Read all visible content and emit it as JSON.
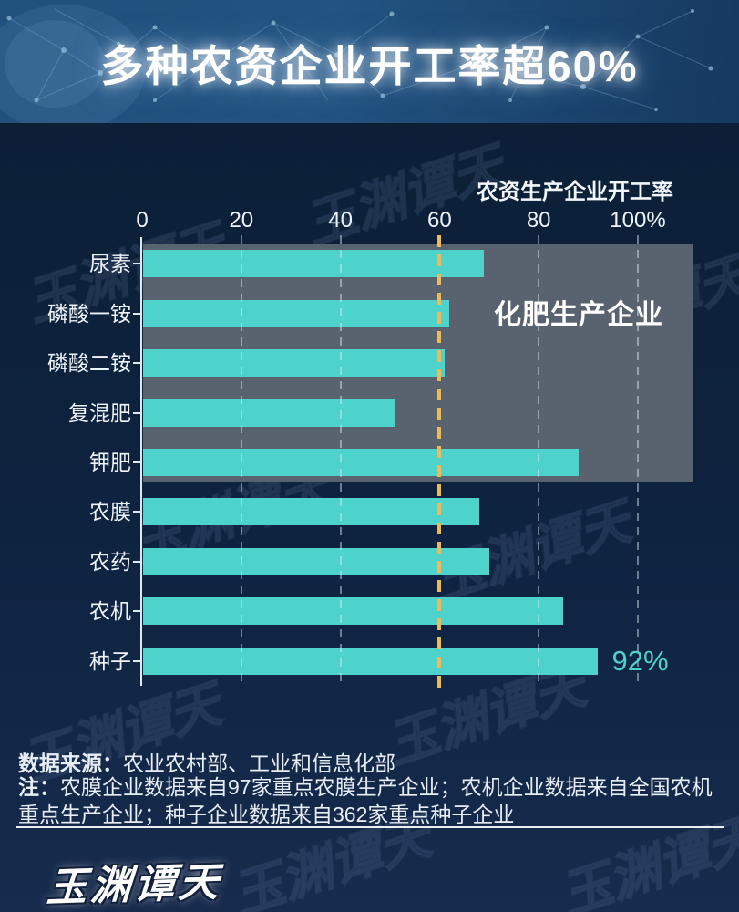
{
  "header": {
    "title": "多种农资企业开工率超60%"
  },
  "chart_data": {
    "type": "bar",
    "orientation": "horizontal",
    "title": "多种农资企业开工率超60%",
    "axis_title": "农资生产企业开工率",
    "categories": [
      "尿素",
      "磷酸一铵",
      "磷酸二铵",
      "复混肥",
      "钾肥",
      "农膜",
      "农药",
      "农机",
      "种子"
    ],
    "values": [
      69,
      62,
      61,
      51,
      88,
      68,
      70,
      85,
      92
    ],
    "unit": "%",
    "xlim": [
      0,
      100
    ],
    "xticks": [
      0,
      20,
      40,
      60,
      80,
      100
    ],
    "xtick_labels": [
      "0",
      "20",
      "40",
      "60",
      "80",
      "100%"
    ],
    "grid": "vertical-dashed",
    "legend": "none",
    "threshold": {
      "value": 60,
      "style": "dashed"
    },
    "annotation_box": {
      "label": "化肥生产企业",
      "category_range": [
        0,
        4
      ],
      "x_span_units": [
        0,
        111
      ]
    },
    "value_labels": [
      {
        "category": "种子",
        "text": "92%"
      }
    ]
  },
  "footer": {
    "source_label": "数据来源：",
    "source_text": "农业农村部、工业和信息化部",
    "note_label": "注：",
    "note_text": "农膜企业数据来自97家重点农膜生产企业；农机企业数据来自全国农机重点生产企业；种子企业数据来自362家重点种子企业"
  },
  "logo": {
    "text": "玉渊谭天"
  },
  "colors": {
    "bar": "#4dd2cc",
    "annotation_box": "#59636f",
    "threshold_line": "#efba52",
    "grid_line": "rgba(225,236,246,0.45)",
    "value_label": "#4dd2cc",
    "header_bg": "#21527f",
    "background_top": "#0c1f37",
    "background_bottom": "#172b4e"
  }
}
